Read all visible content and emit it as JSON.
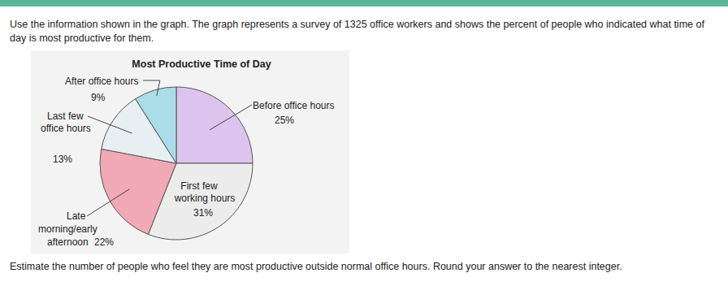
{
  "problem": {
    "intro": "Use the information shown in the graph. The graph represents a survey of 1325 office workers and shows the percent of people who indicated what time of day is most productive for them.",
    "question": "Estimate the number of people who feel they are most productive outside normal office hours. Round your answer to the nearest integer."
  },
  "chart_data": {
    "type": "pie",
    "title": "Most Productive Time of Day",
    "categories": [
      "Before office hours",
      "First few\nworking hours",
      "Late\nmorning/early\nafternoon",
      "Last few\noffice hours",
      "After office hours"
    ],
    "values": [
      25,
      31,
      22,
      13,
      9
    ],
    "value_labels": [
      "25%",
      "31%",
      "22%",
      "13%",
      "9%"
    ],
    "colors": [
      "#dcc4ee",
      "#ececec",
      "#f0a9b5",
      "#e8eff3",
      "#a9dde7"
    ],
    "data_labels": true
  }
}
